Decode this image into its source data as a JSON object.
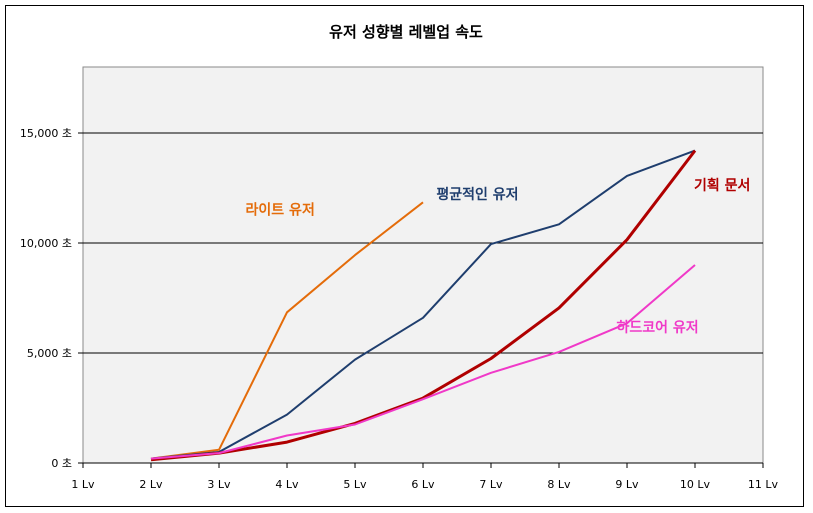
{
  "chart_data": {
    "type": "line",
    "title": "유저 성향별 레벨업 속도",
    "xlabel": "",
    "ylabel": "",
    "categories": [
      "1 Lv",
      "2 Lv",
      "3 Lv",
      "4 Lv",
      "5 Lv",
      "6 Lv",
      "7 Lv",
      "8 Lv",
      "9 Lv",
      "10 Lv",
      "11 Lv"
    ],
    "y_ticks": [
      {
        "value": 0,
        "label": "0 초"
      },
      {
        "value": 5000,
        "label": "5,000 초"
      },
      {
        "value": 10000,
        "label": "10,000 초"
      },
      {
        "value": 15000,
        "label": "15,000 초"
      }
    ],
    "ylim": [
      0,
      18000
    ],
    "grid": "horizontal",
    "series": [
      {
        "name": "라이트 유저",
        "color": "#E46C0A",
        "width": 2,
        "label_at": [
          3.9,
          11300
        ],
        "values": [
          null,
          200,
          600,
          6850,
          9450,
          11850,
          null,
          null,
          null,
          null,
          null
        ]
      },
      {
        "name": "평균적인 유저",
        "color": "#1F3E6E",
        "width": 2,
        "label_at": [
          6.8,
          12000
        ],
        "values": [
          null,
          200,
          500,
          2200,
          4700,
          6600,
          9950,
          10850,
          13050,
          14200,
          null
        ]
      },
      {
        "name": "기획 문서",
        "color": "#B00000",
        "width": 3,
        "label_at": [
          10.4,
          12400
        ],
        "values": [
          null,
          150,
          450,
          950,
          1800,
          2950,
          4750,
          7050,
          10150,
          14200,
          null
        ]
      },
      {
        "name": "하드코어 유저",
        "color": "#F039C8",
        "width": 2,
        "label_at": [
          9.45,
          5950
        ],
        "values": [
          null,
          200,
          450,
          1250,
          1750,
          2900,
          4100,
          5050,
          6350,
          9000,
          null
        ]
      }
    ]
  }
}
